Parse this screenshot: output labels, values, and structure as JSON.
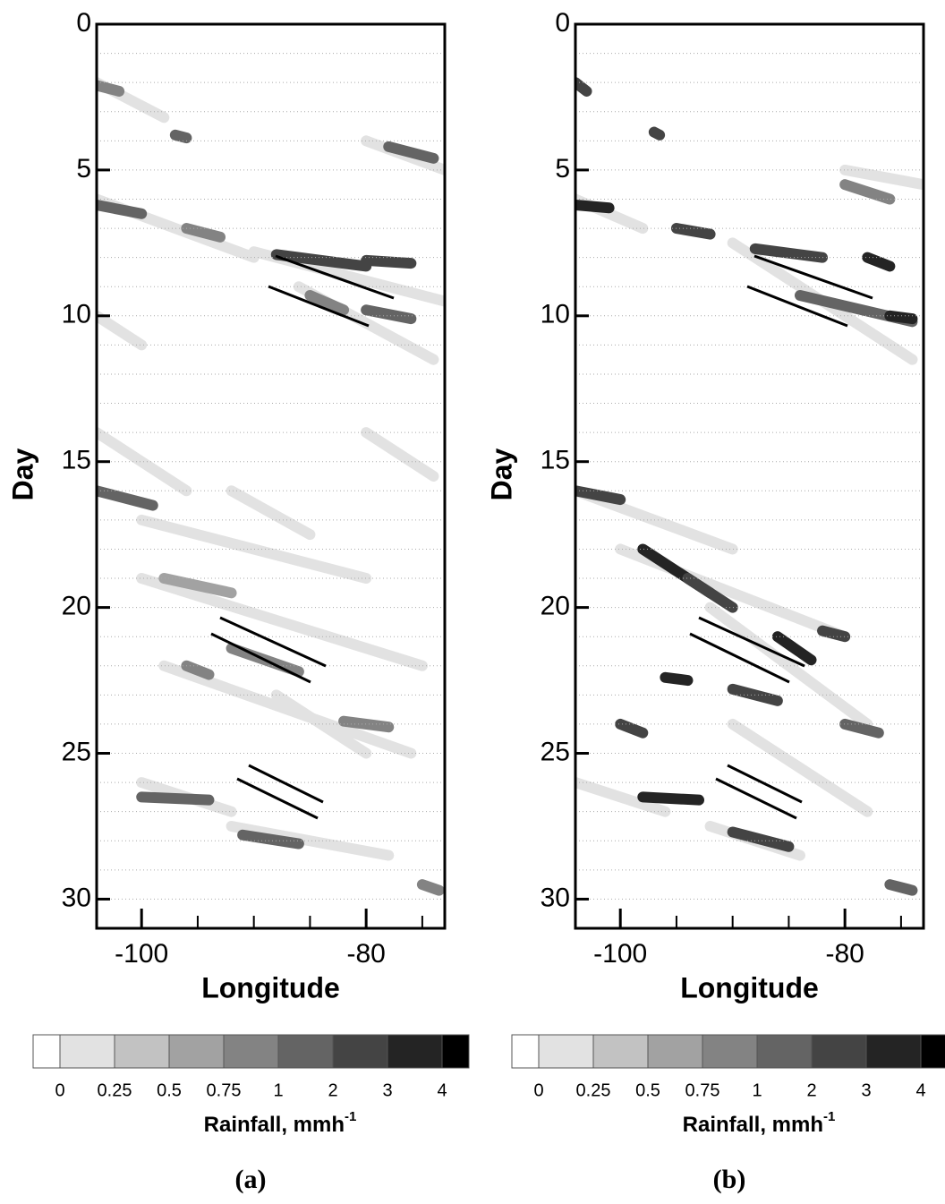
{
  "chart_data": [
    {
      "type": "hovmoller",
      "panel_label": "(a)",
      "x_label": "Longitude",
      "y_label": "Day",
      "xlim": [
        -104,
        -73
      ],
      "ylim": [
        0,
        31
      ],
      "xticks": [
        -100,
        -80
      ],
      "xminor": [
        -95,
        -90,
        -85,
        -75
      ],
      "yticks": [
        0,
        5,
        10,
        15,
        20,
        25,
        30
      ],
      "ygrid": [
        1,
        2,
        3,
        4,
        5,
        6,
        7,
        8,
        9,
        10,
        11,
        12,
        13,
        14,
        15,
        16,
        17,
        18,
        19,
        20,
        21,
        22,
        23,
        24,
        25,
        26,
        27,
        28,
        29,
        30
      ],
      "y_reversed": true,
      "colorbar": {
        "label": "Rainfall, mmh",
        "label_sup": "-1",
        "levels": [
          0,
          0.25,
          0.5,
          0.75,
          1,
          2,
          3,
          4
        ],
        "colors": [
          "#ffffff",
          "#e2e2e2",
          "#c2c2c2",
          "#a2a2a2",
          "#838383",
          "#646464",
          "#444444",
          "#242424",
          "#000000"
        ]
      },
      "streaks": [
        [
          -104,
          2,
          -98,
          3.2,
          0.1
        ],
        [
          -104,
          6,
          -90,
          8,
          0.1
        ],
        [
          -90,
          7.8,
          -73,
          9.5,
          0.1
        ],
        [
          -86,
          9,
          -74,
          11.5,
          0.1
        ],
        [
          -80,
          4,
          -73,
          5,
          0.1
        ],
        [
          -104,
          10,
          -100,
          11,
          0.1
        ],
        [
          -104,
          14,
          -96,
          16,
          0.1
        ],
        [
          -100,
          17,
          -80,
          19,
          0.1
        ],
        [
          -100,
          19,
          -75,
          22,
          0.1
        ],
        [
          -98,
          22,
          -76,
          25,
          0.1
        ],
        [
          -92,
          16,
          -85,
          17.5,
          0.1
        ],
        [
          -100,
          26,
          -92,
          27,
          0.1
        ],
        [
          -92,
          27.5,
          -78,
          28.5,
          0.1
        ],
        [
          -80,
          14,
          -74,
          15.5,
          0.1
        ],
        [
          -88,
          23,
          -80,
          25,
          0.1
        ],
        [
          -104,
          2.1,
          -102,
          2.3,
          0.9
        ],
        [
          -97,
          3.8,
          -96,
          3.9,
          1.5
        ],
        [
          -104,
          6.2,
          -100,
          6.5,
          1.5
        ],
        [
          -96,
          7,
          -93,
          7.3,
          0.9
        ],
        [
          -88,
          7.9,
          -80,
          8.3,
          2.5
        ],
        [
          -80,
          8.1,
          -76,
          8.2,
          2.5
        ],
        [
          -85,
          9.3,
          -82,
          9.8,
          0.9
        ],
        [
          -80,
          9.8,
          -76,
          10.1,
          1.5
        ],
        [
          -78,
          4.2,
          -74,
          4.6,
          1.5
        ],
        [
          -104,
          16,
          -99,
          16.5,
          1.5
        ],
        [
          -98,
          19,
          -92,
          19.5,
          0.6
        ],
        [
          -92,
          21.4,
          -86,
          22.2,
          0.9
        ],
        [
          -96,
          22,
          -94,
          22.3,
          0.9
        ],
        [
          -82,
          23.9,
          -78,
          24.1,
          0.9
        ],
        [
          -100,
          26.5,
          -94,
          26.6,
          1.5
        ],
        [
          -91,
          27.8,
          -86,
          28.1,
          1.5
        ],
        [
          -75,
          29.5,
          -73.5,
          29.7,
          0.9
        ]
      ]
    },
    {
      "type": "hovmoller",
      "panel_label": "(b)",
      "x_label": "Longitude",
      "y_label": "Day",
      "xlim": [
        -104,
        -73
      ],
      "ylim": [
        0,
        31
      ],
      "xticks": [
        -100,
        -80
      ],
      "xminor": [
        -95,
        -90,
        -85,
        -75
      ],
      "yticks": [
        0,
        5,
        10,
        15,
        20,
        25,
        30
      ],
      "ygrid": [
        1,
        2,
        3,
        4,
        5,
        6,
        7,
        8,
        9,
        10,
        11,
        12,
        13,
        14,
        15,
        16,
        17,
        18,
        19,
        20,
        21,
        22,
        23,
        24,
        25,
        26,
        27,
        28,
        29,
        30
      ],
      "y_reversed": true,
      "colorbar": {
        "label": "Rainfall, mmh",
        "label_sup": "-1",
        "levels": [
          0,
          0.25,
          0.5,
          0.75,
          1,
          2,
          3,
          4
        ],
        "colors": [
          "#ffffff",
          "#e2e2e2",
          "#c2c2c2",
          "#a2a2a2",
          "#838383",
          "#646464",
          "#444444",
          "#242424",
          "#000000"
        ]
      },
      "streaks": [
        [
          -104,
          6,
          -98,
          7,
          0.1
        ],
        [
          -90,
          7.5,
          -74,
          11.5,
          0.1
        ],
        [
          -104,
          16,
          -90,
          18,
          0.1
        ],
        [
          -100,
          18,
          -80,
          21,
          0.1
        ],
        [
          -92,
          20,
          -78,
          24,
          0.1
        ],
        [
          -90,
          24,
          -78,
          27,
          0.1
        ],
        [
          -92,
          27.5,
          -84,
          28.5,
          0.1
        ],
        [
          -104,
          26,
          -96,
          27,
          0.1
        ],
        [
          -80,
          5,
          -73,
          5.5,
          0.1
        ],
        [
          -104,
          2,
          -103,
          2.3,
          2.5
        ],
        [
          -97,
          3.7,
          -96.5,
          3.8,
          2.5
        ],
        [
          -104,
          6.2,
          -101,
          6.3,
          3.5
        ],
        [
          -95,
          7,
          -92,
          7.2,
          2.5
        ],
        [
          -88,
          7.7,
          -82,
          8,
          2.5
        ],
        [
          -78,
          8,
          -76,
          8.3,
          3.5
        ],
        [
          -84,
          9.3,
          -74,
          10.2,
          1.5
        ],
        [
          -76,
          10,
          -74,
          10.1,
          3.5
        ],
        [
          -80,
          5.5,
          -76,
          6,
          0.9
        ],
        [
          -104,
          16,
          -100,
          16.3,
          2.5
        ],
        [
          -98,
          18,
          -92,
          19.5,
          3.5
        ],
        [
          -94,
          19,
          -90,
          20,
          2.5
        ],
        [
          -86,
          21,
          -83,
          21.8,
          3.5
        ],
        [
          -82,
          20.8,
          -80,
          21,
          2.5
        ],
        [
          -90,
          22.8,
          -86,
          23.2,
          2.5
        ],
        [
          -96,
          22.4,
          -94,
          22.5,
          3.5
        ],
        [
          -100,
          24,
          -98,
          24.3,
          2.5
        ],
        [
          -98,
          26.5,
          -93,
          26.6,
          3.5
        ],
        [
          -90,
          27.7,
          -85,
          28.2,
          2.5
        ],
        [
          -80,
          24,
          -77,
          24.3,
          1.5
        ],
        [
          -76,
          29.5,
          -74,
          29.7,
          1.5
        ]
      ]
    }
  ]
}
